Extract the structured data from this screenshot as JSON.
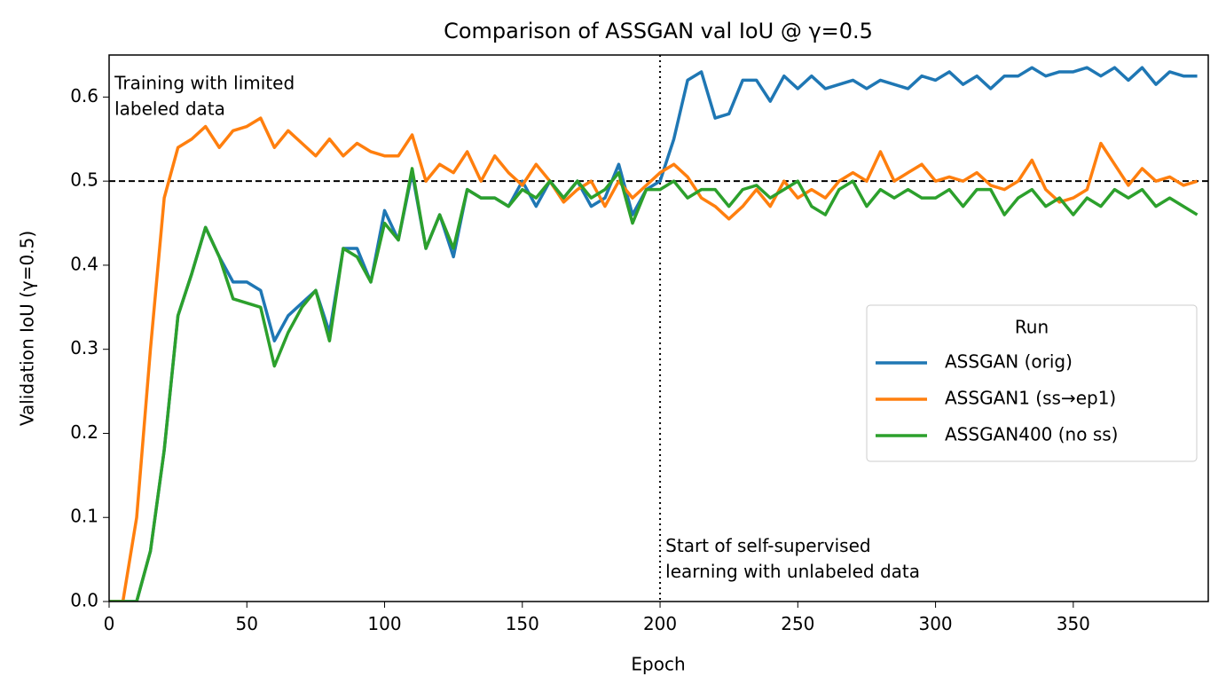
{
  "chart_data": {
    "type": "line",
    "title": "Comparison of ASSGAN val IoU @ γ=0.5",
    "x_label": "Epoch",
    "y_label": "Validation IoU (γ=0.5)",
    "xlim": [
      0,
      399
    ],
    "ylim": [
      0,
      0.65
    ],
    "xticks": [
      0,
      50,
      100,
      150,
      200,
      250,
      300,
      350
    ],
    "yticks": [
      {
        "value": 0,
        "label": "0.0"
      },
      0.1,
      0.2,
      0.3,
      0.4,
      0.5,
      0.6
    ],
    "hline": 0.5,
    "vline": 200,
    "annotations": [
      {
        "x": 1,
        "y": 0.615,
        "lines": [
          "Training with limited",
          "labeled data"
        ]
      },
      {
        "x": 201,
        "y": 0.065,
        "lines": [
          "Start of self-supervised",
          "learning with unlabeled data"
        ]
      }
    ],
    "legend_title": "Run",
    "legend_position": "center right",
    "x": [
      0,
      5,
      10,
      15,
      20,
      25,
      30,
      35,
      40,
      45,
      50,
      55,
      60,
      65,
      70,
      75,
      80,
      85,
      90,
      95,
      100,
      105,
      110,
      115,
      120,
      125,
      130,
      135,
      140,
      145,
      150,
      155,
      160,
      165,
      170,
      175,
      180,
      185,
      190,
      195,
      200,
      205,
      210,
      215,
      220,
      225,
      230,
      235,
      240,
      245,
      250,
      255,
      260,
      265,
      270,
      275,
      280,
      285,
      290,
      295,
      300,
      305,
      310,
      315,
      320,
      325,
      330,
      335,
      340,
      345,
      350,
      355,
      360,
      365,
      370,
      375,
      380,
      385,
      390,
      395
    ],
    "series": [
      {
        "name": "ASSGAN (orig)",
        "color": "#1f77b4",
        "values": [
          0,
          0,
          0,
          0.06,
          0.18,
          0.34,
          0.39,
          0.445,
          0.41,
          0.38,
          0.38,
          0.37,
          0.31,
          0.34,
          0.355,
          0.37,
          0.32,
          0.42,
          0.42,
          0.38,
          0.465,
          0.43,
          0.51,
          0.42,
          0.46,
          0.41,
          0.49,
          0.48,
          0.48,
          0.47,
          0.5,
          0.47,
          0.5,
          0.48,
          0.5,
          0.47,
          0.48,
          0.52,
          0.46,
          0.49,
          0.5,
          0.55,
          0.62,
          0.63,
          0.575,
          0.58,
          0.62,
          0.62,
          0.595,
          0.625,
          0.61,
          0.625,
          0.61,
          0.615,
          0.62,
          0.61,
          0.62,
          0.615,
          0.61,
          0.625,
          0.62,
          0.63,
          0.615,
          0.625,
          0.61,
          0.625,
          0.625,
          0.635,
          0.625,
          0.63,
          0.63,
          0.635,
          0.625,
          0.635,
          0.62,
          0.635,
          0.615,
          0.63,
          0.625,
          0.625
        ]
      },
      {
        "name": "ASSGAN1 (ss→ep1)",
        "color": "#ff7f0e",
        "values": [
          0,
          0,
          0.1,
          0.3,
          0.48,
          0.54,
          0.55,
          0.565,
          0.54,
          0.56,
          0.565,
          0.575,
          0.54,
          0.56,
          0.545,
          0.53,
          0.55,
          0.53,
          0.545,
          0.535,
          0.53,
          0.53,
          0.555,
          0.5,
          0.52,
          0.51,
          0.535,
          0.5,
          0.53,
          0.51,
          0.495,
          0.52,
          0.5,
          0.475,
          0.49,
          0.5,
          0.47,
          0.5,
          0.48,
          0.495,
          0.51,
          0.52,
          0.505,
          0.48,
          0.47,
          0.455,
          0.47,
          0.49,
          0.47,
          0.5,
          0.48,
          0.49,
          0.48,
          0.5,
          0.51,
          0.5,
          0.535,
          0.5,
          0.51,
          0.52,
          0.5,
          0.505,
          0.5,
          0.51,
          0.495,
          0.49,
          0.5,
          0.525,
          0.49,
          0.475,
          0.48,
          0.49,
          0.545,
          0.52,
          0.495,
          0.515,
          0.5,
          0.505,
          0.495,
          0.5
        ]
      },
      {
        "name": "ASSGAN400 (no ss)",
        "color": "#2ca02c",
        "values": [
          0,
          0,
          0,
          0.06,
          0.18,
          0.34,
          0.39,
          0.445,
          0.41,
          0.36,
          0.355,
          0.35,
          0.28,
          0.32,
          0.35,
          0.37,
          0.31,
          0.42,
          0.41,
          0.38,
          0.45,
          0.43,
          0.515,
          0.42,
          0.46,
          0.42,
          0.49,
          0.48,
          0.48,
          0.47,
          0.49,
          0.48,
          0.5,
          0.48,
          0.5,
          0.48,
          0.49,
          0.51,
          0.45,
          0.49,
          0.49,
          0.5,
          0.48,
          0.49,
          0.49,
          0.47,
          0.49,
          0.495,
          0.48,
          0.49,
          0.5,
          0.47,
          0.46,
          0.49,
          0.5,
          0.47,
          0.49,
          0.48,
          0.49,
          0.48,
          0.48,
          0.49,
          0.47,
          0.49,
          0.49,
          0.46,
          0.48,
          0.49,
          0.47,
          0.48,
          0.46,
          0.48,
          0.47,
          0.49,
          0.48,
          0.49,
          0.47,
          0.48,
          0.47,
          0.46
        ]
      }
    ]
  }
}
